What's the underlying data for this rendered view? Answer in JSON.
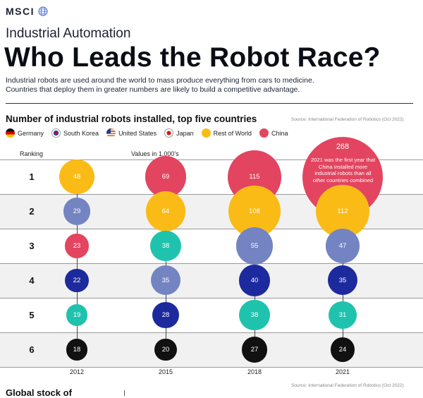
{
  "brand": {
    "name": "MSCI"
  },
  "header": {
    "subtitle": "Industrial Automation",
    "title": "Who Leads the Robot Race?",
    "intro_line1": "Industrial robots are used around the world to mass produce everything from cars to medicine.",
    "intro_line2": "Countries that deploy them in greater numbers are likely to build a competitive advantage."
  },
  "section": {
    "title": "Number of industrial robots installed, top five countries",
    "source": "Source: International Federation of Robotics (Oct 2022)"
  },
  "labels": {
    "ranking": "Ranking",
    "values_unit": "Values in 1,000's",
    "china_note": "2021 was the first year that China installed more industrial robots than all other countries combined"
  },
  "footer": {
    "source": "Source: International Federation of Robotics (Oct 2022)",
    "next_title": "Global stock of"
  },
  "colors": {
    "Germany": "#111111",
    "South Korea": "#1fc3ad",
    "United States": "#1d2a9e",
    "Japan": "#7484c2",
    "Rest of World": "#fbbb17",
    "China": "#e3445f"
  },
  "chart_data": {
    "type": "bubble",
    "title": "Number of industrial robots installed, top five countries",
    "unit": "Values in 1,000's",
    "legend": [
      "Germany",
      "South Korea",
      "United States",
      "Japan",
      "Rest of World",
      "China"
    ],
    "ranks": [
      "1",
      "2",
      "3",
      "4",
      "5",
      "6"
    ],
    "years": [
      "2012",
      "2015",
      "2018",
      "2021"
    ],
    "series": [
      {
        "year": "2012",
        "entries": [
          {
            "rank": 1,
            "country": "Rest of World",
            "value": 48
          },
          {
            "rank": 2,
            "country": "Japan",
            "value": 29
          },
          {
            "rank": 3,
            "country": "China",
            "value": 23
          },
          {
            "rank": 4,
            "country": "United States",
            "value": 22
          },
          {
            "rank": 5,
            "country": "South Korea",
            "value": 19
          },
          {
            "rank": 6,
            "country": "Germany",
            "value": 18
          }
        ]
      },
      {
        "year": "2015",
        "entries": [
          {
            "rank": 1,
            "country": "China",
            "value": 69
          },
          {
            "rank": 2,
            "country": "Rest of World",
            "value": 64
          },
          {
            "rank": 3,
            "country": "South Korea",
            "value": 38
          },
          {
            "rank": 4,
            "country": "Japan",
            "value": 35
          },
          {
            "rank": 5,
            "country": "United States",
            "value": 28
          },
          {
            "rank": 6,
            "country": "Germany",
            "value": 20
          }
        ]
      },
      {
        "year": "2018",
        "entries": [
          {
            "rank": 1,
            "country": "China",
            "value": 115
          },
          {
            "rank": 2,
            "country": "Rest of World",
            "value": 108
          },
          {
            "rank": 3,
            "country": "Japan",
            "value": 55
          },
          {
            "rank": 4,
            "country": "United States",
            "value": 40
          },
          {
            "rank": 5,
            "country": "South Korea",
            "value": 38
          },
          {
            "rank": 6,
            "country": "Germany",
            "value": 27
          }
        ]
      },
      {
        "year": "2021",
        "entries": [
          {
            "rank": 1,
            "country": "China",
            "value": 268
          },
          {
            "rank": 2,
            "country": "Rest of World",
            "value": 112
          },
          {
            "rank": 3,
            "country": "Japan",
            "value": 47
          },
          {
            "rank": 4,
            "country": "United States",
            "value": 35
          },
          {
            "rank": 5,
            "country": "South Korea",
            "value": 31
          },
          {
            "rank": 6,
            "country": "Germany",
            "value": 24
          }
        ]
      }
    ]
  }
}
